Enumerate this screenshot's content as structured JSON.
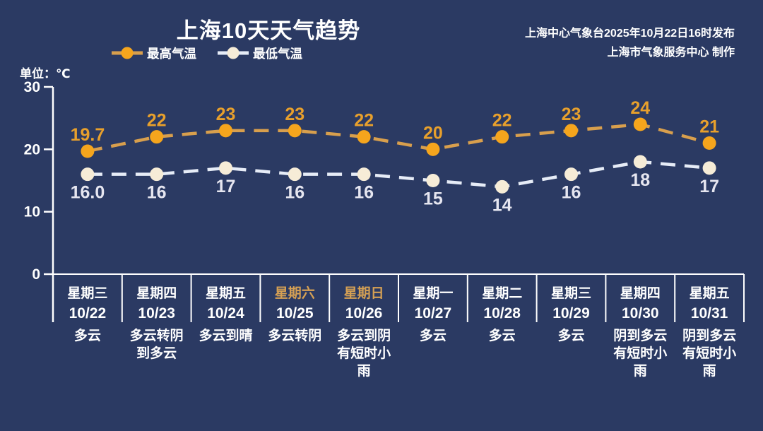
{
  "header": {
    "title": "上海10天天气趋势",
    "source_line1": "上海中心气象台2025年10月22日16时发布",
    "source_line2": "上海市气象服务中心  制作"
  },
  "legend": {
    "high_label": "最高气温",
    "low_label": "最低气温"
  },
  "unit_label": "单位：℃",
  "colors": {
    "background": "#2b3a63",
    "high_dot": "#f5a51d",
    "high_line": "#d89f4d",
    "high_text": "#e8a02c",
    "low_dot": "#f6ecd7",
    "low_line": "#e6ecf7",
    "low_text": "#e6e6f0",
    "axis": "#ffffff",
    "weekend_text": "#d5a054",
    "white": "#ffffff"
  },
  "chart_data": {
    "type": "line",
    "title": "上海10天天气趋势",
    "ylabel": "单位：℃",
    "ylim": [
      0,
      30
    ],
    "yticks": [
      0,
      10,
      20,
      30
    ],
    "grid": false,
    "legend_position": "top-left",
    "categories": [
      "星期三",
      "星期四",
      "星期五",
      "星期六",
      "星期日",
      "星期一",
      "星期二",
      "星期三",
      "星期四",
      "星期五"
    ],
    "dates": [
      "10/22",
      "10/23",
      "10/24",
      "10/25",
      "10/26",
      "10/27",
      "10/28",
      "10/29",
      "10/30",
      "10/31"
    ],
    "weather": [
      "多云",
      "多云转阴到多云",
      "多云到晴",
      "多云转阴",
      "多云到阴有短时小雨",
      "多云",
      "多云",
      "多云",
      "阴到多云有短时小雨",
      "阴到多云有短时小雨"
    ],
    "weekend_indices": [
      3,
      4
    ],
    "series": [
      {
        "name": "最高气温",
        "values": [
          19.7,
          22,
          23,
          23,
          22,
          20,
          22,
          23,
          24,
          21
        ],
        "labels": [
          "19.7",
          "22",
          "23",
          "23",
          "22",
          "20",
          "22",
          "23",
          "24",
          "21"
        ]
      },
      {
        "name": "最低气温",
        "values": [
          16.0,
          16,
          17,
          16,
          16,
          15,
          14,
          16,
          18,
          17
        ],
        "labels": [
          "16.0",
          "16",
          "17",
          "16",
          "16",
          "15",
          "14",
          "16",
          "18",
          "17"
        ]
      }
    ]
  }
}
